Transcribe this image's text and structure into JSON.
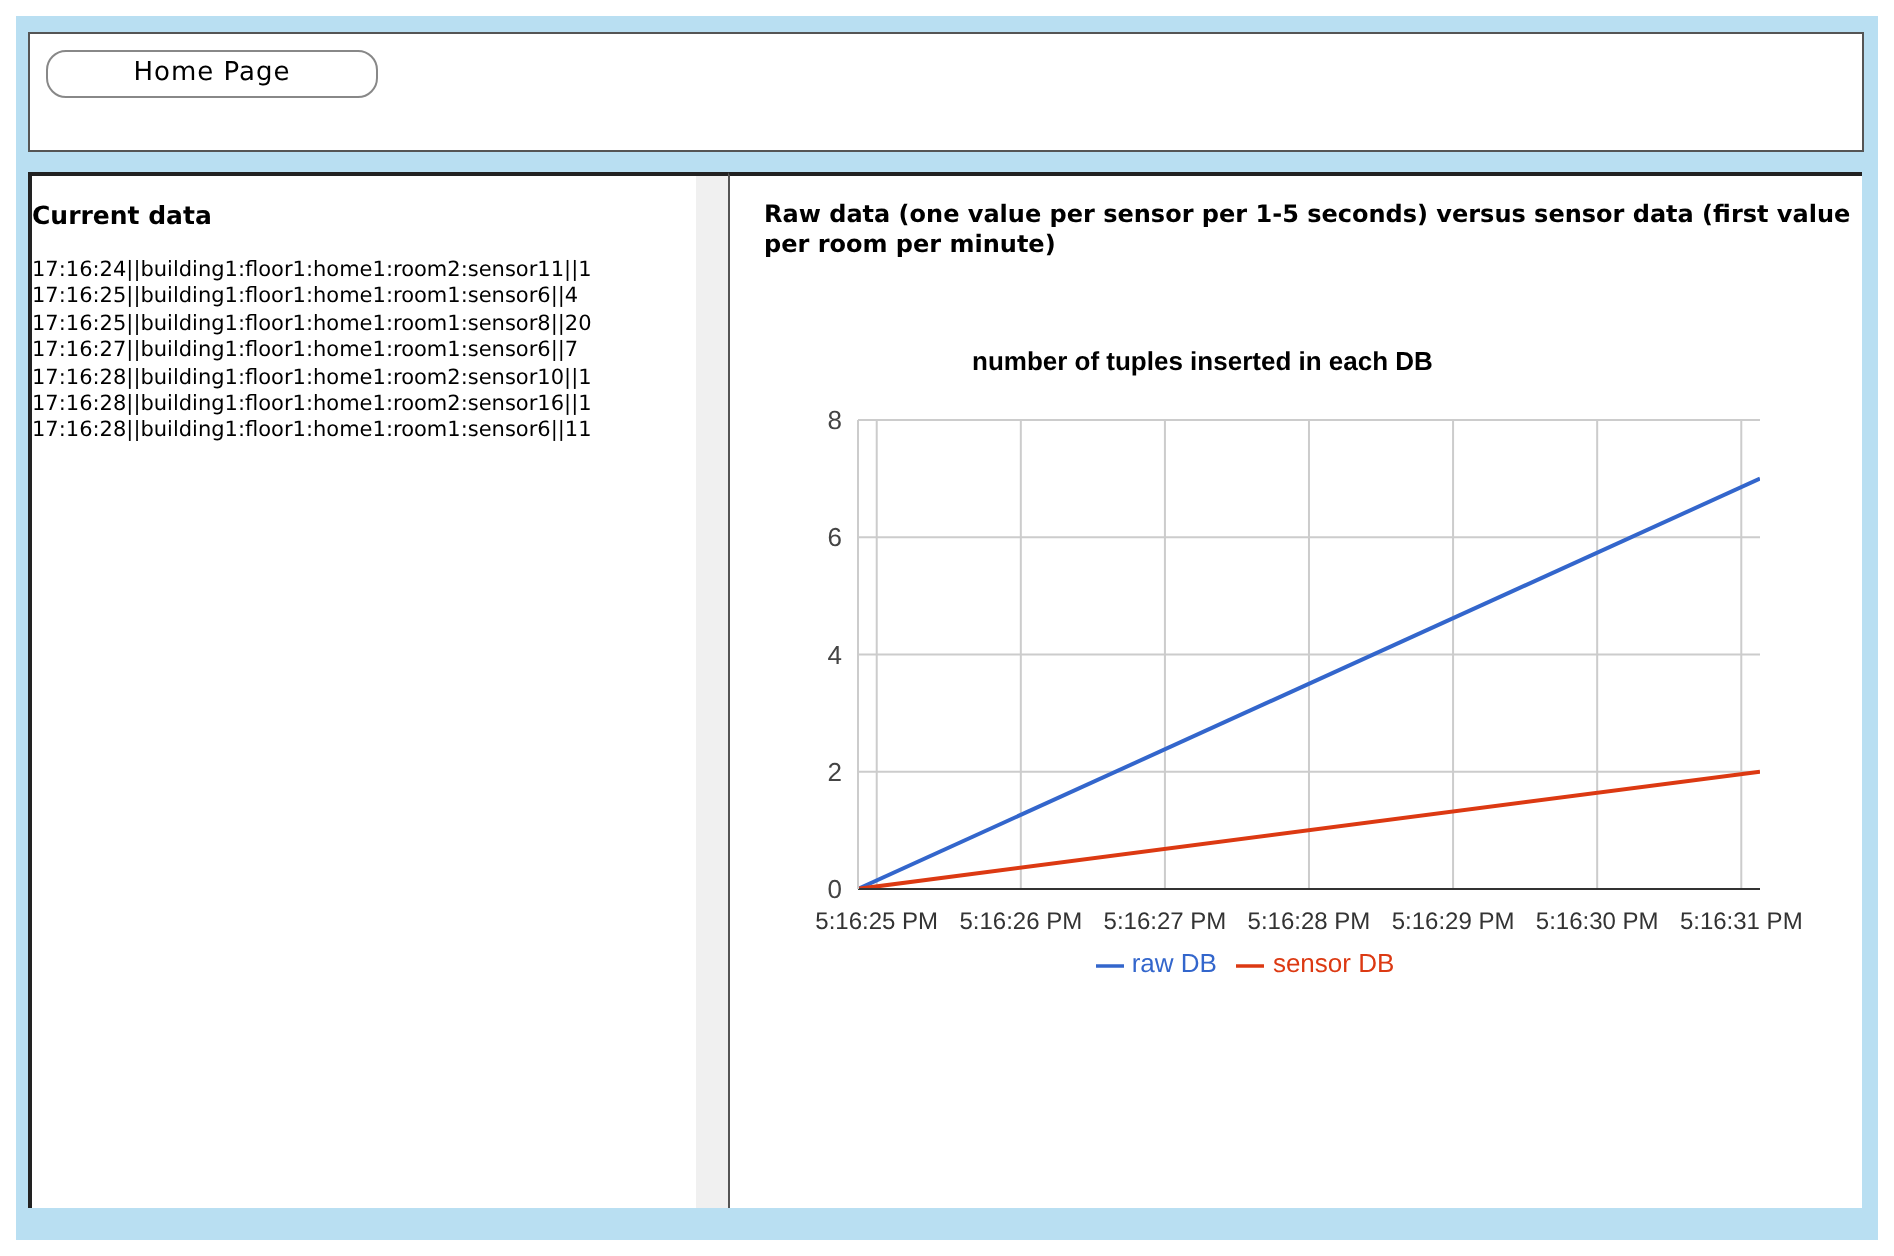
{
  "chart_data": [
    {
      "type": "other",
      "annotations": [
        "Home Page"
      ]
    },
    {
      "type": "other",
      "title": "Current data",
      "annotations": [
        "17:16:24||building1:floor1:home1:room2:sensor11||1",
        "17:16:25||building1:floor1:home1:room1:sensor6||4",
        "17:16:25||building1:floor1:home1:room1:sensor8||20",
        "17:16:27||building1:floor1:home1:room1:sensor6||7",
        "17:16:28||building1:floor1:home1:room2:sensor10||1",
        "17:16:28||building1:floor1:home1:room2:sensor16||1",
        "17:16:28||building1:floor1:home1:room1:sensor6||11"
      ]
    },
    {
      "type": "line",
      "title": "Raw data (one value per sensor per 1-5 seconds) versus sensor data (first value per room per minute)",
      "subtitle": "number of tuples inserted in each DB",
      "x": [
        17.273575,
        17.2753139
      ],
      "series": [
        {
          "name": "raw DB",
          "color": "#3366cc",
          "values": [
            0,
            7
          ]
        },
        {
          "name": "sensor DB",
          "color": "#dc3912",
          "values": [
            0,
            2
          ]
        }
      ],
      "xlim": [
        17.273575,
        17.2753139
      ],
      "xticks": [
        {
          "value": 17.2736111,
          "label": "5:16:25 PM"
        },
        {
          "value": 17.2738889,
          "label": "5:16:26 PM"
        },
        {
          "value": 17.2741667,
          "label": "5:16:27 PM"
        },
        {
          "value": 17.2744444,
          "label": "5:16:28 PM"
        },
        {
          "value": 17.2747222,
          "label": "5:16:29 PM"
        },
        {
          "value": 17.275,
          "label": "5:16:30 PM"
        },
        {
          "value": 17.2752778,
          "label": "5:16:31 PM"
        }
      ],
      "ylim": [
        0,
        8
      ],
      "yticks": [
        0,
        2,
        4,
        6,
        8
      ],
      "grid": true,
      "legend": "bottom",
      "marker": "none",
      "line_style": "solid"
    }
  ]
}
